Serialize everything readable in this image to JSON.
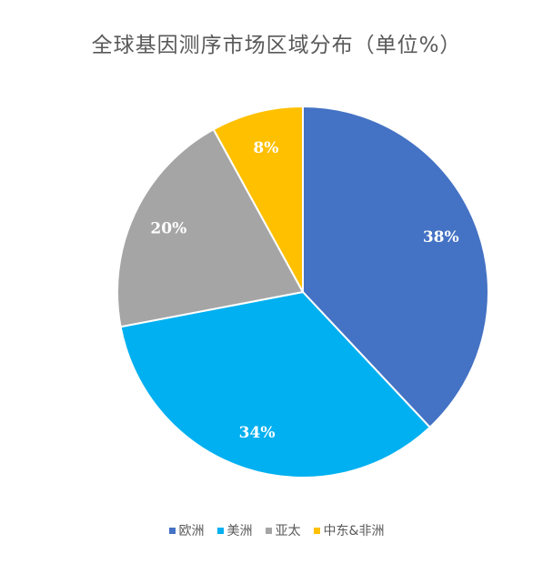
{
  "chart_data": {
    "type": "pie",
    "title": "全球基因测序市场区域分布（单位%）",
    "series": [
      {
        "categories": [
          "欧洲",
          "美洲",
          "亚太",
          "中东&非洲"
        ],
        "values": [
          38,
          34,
          20,
          8
        ],
        "labels": [
          "38%",
          "34%",
          "20%",
          "8%"
        ],
        "colors": [
          "#4472C4",
          "#00B0F0",
          "#A5A5A5",
          "#FFC000"
        ]
      }
    ],
    "start_angle_deg": 0,
    "direction": "clockwise",
    "data_labels": "inside",
    "data_label_color": "#FFFFFF",
    "legend_position": "bottom"
  }
}
